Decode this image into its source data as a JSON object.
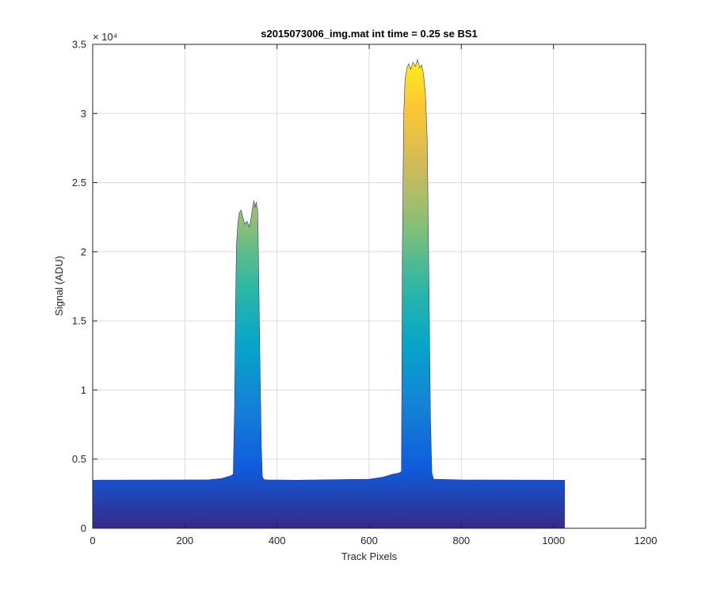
{
  "chart_data": {
    "type": "area",
    "title": "s2015073006_img.mat int time = 0.25 se   BS1",
    "xlabel": "Track Pixels",
    "ylabel": "Signal (ADU)",
    "xlim": [
      0,
      1200
    ],
    "ylim": [
      0,
      35000
    ],
    "y_exponent_label": "× 10⁴",
    "y_scale_divisor": 10000,
    "grid": true,
    "colormap": "parula",
    "colormap_stops": [
      "#352a87",
      "#0f5cdd",
      "#1481d6",
      "#06a4ca",
      "#2eb7a4",
      "#87bf77",
      "#d1bb59",
      "#fec832",
      "#f9fb0e"
    ],
    "x_ticks": [
      0,
      200,
      400,
      600,
      800,
      1000,
      1200
    ],
    "y_ticks": [
      0,
      5000,
      10000,
      15000,
      20000,
      25000,
      30000,
      35000
    ],
    "x_tick_labels": [
      "0",
      "200",
      "400",
      "600",
      "800",
      "1000",
      "1200"
    ],
    "y_tick_labels": [
      "0",
      "0.5",
      "1",
      "1.5",
      "2",
      "2.5",
      "3",
      "3.5"
    ],
    "series": [
      {
        "x": [
          0,
          250,
          280,
          300,
          305,
          308,
          310,
          312,
          315,
          318,
          322,
          326,
          330,
          335,
          340,
          344,
          348,
          350,
          352,
          355,
          358,
          360,
          363,
          366,
          368,
          370,
          372,
          380,
          450,
          600,
          630,
          650,
          665,
          670,
          672,
          675,
          678,
          682,
          686,
          690,
          695,
          700,
          705,
          710,
          714,
          718,
          722,
          726,
          730,
          733,
          736,
          740,
          800,
          1024
        ],
        "y": [
          3480,
          3500,
          3600,
          3800,
          3900,
          9000,
          16000,
          20500,
          22000,
          22800,
          23000,
          22500,
          22000,
          22200,
          21800,
          22500,
          23400,
          23700,
          23200,
          23600,
          23000,
          19000,
          12000,
          6000,
          3800,
          3600,
          3520,
          3500,
          3480,
          3550,
          3700,
          3900,
          4000,
          4100,
          20000,
          30000,
          32500,
          33300,
          33600,
          33200,
          33700,
          33400,
          33900,
          33300,
          33500,
          32800,
          31500,
          28000,
          17000,
          8000,
          4000,
          3550,
          3500,
          3480
        ]
      }
    ]
  }
}
